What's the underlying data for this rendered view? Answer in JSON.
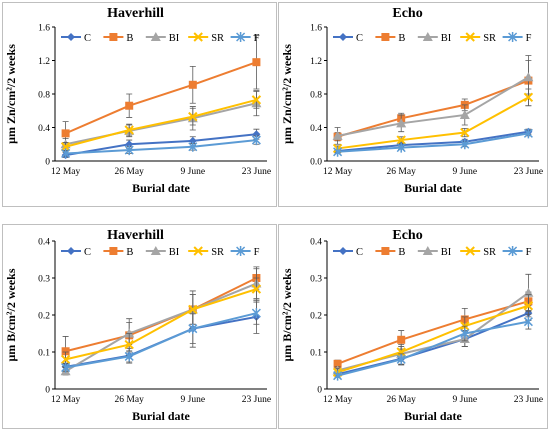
{
  "chart_data": [
    {
      "type": "line",
      "title": "Haverhill",
      "xlabel": "Burial date",
      "ylabel": "μm Zn/cm²/2 weeks",
      "categories": [
        "12 May",
        "26 May",
        "9 June",
        "23 June"
      ],
      "ylim": [
        0,
        1.6
      ],
      "yticks": [
        "0",
        "0.4",
        "0.8",
        "1.2",
        "1.6"
      ],
      "grid": false,
      "legend": "top",
      "series": [
        {
          "name": "C",
          "color": "#4472c4",
          "marker": "diamond",
          "values": [
            0.07,
            0.2,
            0.24,
            0.32
          ],
          "errors": [
            0.03,
            0.05,
            0.05,
            0.06
          ]
        },
        {
          "name": "B",
          "color": "#ed7d31",
          "marker": "square",
          "values": [
            0.33,
            0.66,
            0.91,
            1.18
          ],
          "errors": [
            0.14,
            0.14,
            0.22,
            0.32
          ]
        },
        {
          "name": "BI",
          "color": "#a5a5a5",
          "marker": "triangle",
          "values": [
            0.2,
            0.36,
            0.51,
            0.69
          ],
          "errors": [
            0.07,
            0.07,
            0.14,
            0.15
          ]
        },
        {
          "name": "SR",
          "color": "#ffc000",
          "marker": "x",
          "values": [
            0.17,
            0.37,
            0.53,
            0.73
          ],
          "errors": [
            0.05,
            0.07,
            0.1,
            0.1
          ]
        },
        {
          "name": "F",
          "color": "#5b9bd5",
          "marker": "star",
          "values": [
            0.09,
            0.13,
            0.17,
            0.25
          ],
          "errors": [
            0.03,
            0.04,
            0.04,
            0.05
          ]
        }
      ]
    },
    {
      "type": "line",
      "title": "Echo",
      "xlabel": "Burial date",
      "ylabel": "μm Zn/cm²/2 weeks",
      "categories": [
        "12 May",
        "26 May",
        "9 June",
        "23 June"
      ],
      "ylim": [
        0,
        1.6
      ],
      "yticks": [
        "0.0",
        "0.4",
        "0.8",
        "1.2",
        "1.6"
      ],
      "grid": false,
      "legend": "top",
      "series": [
        {
          "name": "C",
          "color": "#4472c4",
          "marker": "diamond",
          "values": [
            0.12,
            0.19,
            0.23,
            0.35
          ],
          "errors": [
            0.02,
            0.03,
            0.03,
            0.03
          ]
        },
        {
          "name": "B",
          "color": "#ed7d31",
          "marker": "square",
          "values": [
            0.29,
            0.51,
            0.67,
            0.96
          ],
          "errors": [
            0.05,
            0.06,
            0.07,
            0.3
          ]
        },
        {
          "name": "BI",
          "color": "#a5a5a5",
          "marker": "triangle",
          "values": [
            0.3,
            0.45,
            0.55,
            1.0
          ],
          "errors": [
            0.1,
            0.1,
            0.12,
            0.2
          ]
        },
        {
          "name": "SR",
          "color": "#ffc000",
          "marker": "x",
          "values": [
            0.15,
            0.25,
            0.34,
            0.76
          ],
          "errors": [
            0.03,
            0.04,
            0.05,
            0.1
          ]
        },
        {
          "name": "F",
          "color": "#5b9bd5",
          "marker": "star",
          "values": [
            0.11,
            0.16,
            0.2,
            0.33
          ],
          "errors": [
            0.02,
            0.02,
            0.03,
            0.03
          ]
        }
      ]
    },
    {
      "type": "line",
      "title": "Haverhill",
      "xlabel": "Burial date",
      "ylabel": "μm B/cm²/2 weeks",
      "categories": [
        "12 May",
        "26 May",
        "9 June",
        "23 June"
      ],
      "ylim": [
        0,
        0.4
      ],
      "yticks": [
        "0",
        "0.1",
        "0.2",
        "0.3",
        "0.4"
      ],
      "grid": false,
      "legend": "top",
      "series": [
        {
          "name": "C",
          "color": "#4472c4",
          "marker": "diamond",
          "values": [
            0.06,
            0.09,
            0.163,
            0.195
          ],
          "errors": [
            0.01,
            0.02,
            0.05,
            0.045
          ]
        },
        {
          "name": "B",
          "color": "#ed7d31",
          "marker": "square",
          "values": [
            0.102,
            0.145,
            0.215,
            0.3
          ],
          "errors": [
            0.04,
            0.045,
            0.05,
            0.03
          ]
        },
        {
          "name": "BI",
          "color": "#a5a5a5",
          "marker": "triangle",
          "values": [
            0.048,
            0.15,
            0.215,
            0.285
          ],
          "errors": [
            0.01,
            0.03,
            0.04,
            0.04
          ]
        },
        {
          "name": "SR",
          "color": "#ffc000",
          "marker": "x",
          "values": [
            0.08,
            0.12,
            0.215,
            0.27
          ],
          "errors": [
            0.02,
            0.03,
            0.04,
            0.03
          ]
        },
        {
          "name": "F",
          "color": "#5b9bd5",
          "marker": "star",
          "values": [
            0.058,
            0.088,
            0.163,
            0.205
          ],
          "errors": [
            0.01,
            0.015,
            0.04,
            0.03
          ]
        }
      ]
    },
    {
      "type": "line",
      "title": "Echo",
      "xlabel": "Burial date",
      "ylabel": "μm B/cm²/2 weeks",
      "categories": [
        "12 May",
        "26 May",
        "9 June",
        "23 June"
      ],
      "ylim": [
        0,
        0.4
      ],
      "yticks": [
        "0",
        "0.1",
        "0.2",
        "0.3",
        "0.4"
      ],
      "grid": false,
      "legend": "top",
      "series": [
        {
          "name": "C",
          "color": "#4472c4",
          "marker": "diamond",
          "values": [
            0.04,
            0.082,
            0.135,
            0.205
          ],
          "errors": [
            0.005,
            0.015,
            0.02,
            0.02
          ]
        },
        {
          "name": "B",
          "color": "#ed7d31",
          "marker": "square",
          "values": [
            0.068,
            0.133,
            0.188,
            0.237
          ],
          "errors": [
            0.01,
            0.025,
            0.03,
            0.025
          ]
        },
        {
          "name": "BI",
          "color": "#a5a5a5",
          "marker": "triangle",
          "values": [
            0.05,
            0.095,
            0.135,
            0.26
          ],
          "errors": [
            0.01,
            0.02,
            0.02,
            0.05
          ]
        },
        {
          "name": "SR",
          "color": "#ffc000",
          "marker": "x",
          "values": [
            0.045,
            0.1,
            0.17,
            0.225
          ],
          "errors": [
            0.01,
            0.02,
            0.025,
            0.03
          ]
        },
        {
          "name": "F",
          "color": "#5b9bd5",
          "marker": "star",
          "values": [
            0.036,
            0.08,
            0.15,
            0.182
          ],
          "errors": [
            0.005,
            0.015,
            0.02,
            0.02
          ]
        }
      ]
    }
  ]
}
